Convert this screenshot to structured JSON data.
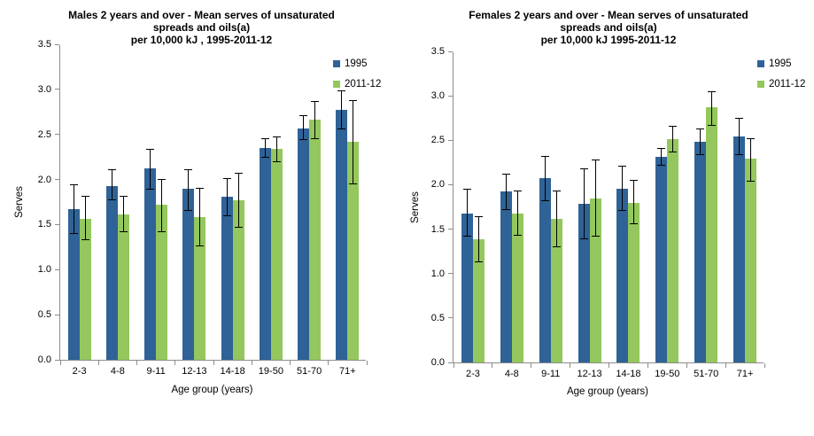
{
  "colors": {
    "series_1995": "#2F6296",
    "series_2011_12": "#94C75D",
    "error_bar": "#000000",
    "axis_line": "#8C8C8C",
    "text": "#000000",
    "background": "#FFFFFF"
  },
  "chart_data": [
    {
      "type": "bar",
      "title": "Males 2 years and over - Mean serves of unsaturated spreads and oils(a) per 10,000 kJ , 1995-2011-12",
      "title_lines": [
        "Males 2 years and over - Mean serves of unsaturated",
        "spreads and oils(a)",
        "per 10,000 kJ , 1995-2011-12"
      ],
      "xlabel": "Age group (years)",
      "ylabel": "Serves",
      "ylim": [
        0,
        3.5
      ],
      "ytick_step": 0.5,
      "grid": false,
      "legend_position": "top-right-inside",
      "categories": [
        "2-3",
        "4-8",
        "9-11",
        "12-13",
        "14-18",
        "19-50",
        "51-70",
        "71+"
      ],
      "series": [
        {
          "name": "1995",
          "color": "#2F6296",
          "values": [
            1.67,
            1.93,
            2.12,
            1.9,
            1.81,
            2.35,
            2.57,
            2.77
          ],
          "error_low": [
            1.4,
            1.77,
            1.89,
            1.66,
            1.6,
            2.25,
            2.44,
            2.56
          ],
          "error_high": [
            1.94,
            2.11,
            2.34,
            2.11,
            2.01,
            2.45,
            2.71,
            2.98
          ]
        },
        {
          "name": "2011-12",
          "color": "#94C75D",
          "values": [
            1.56,
            1.61,
            1.72,
            1.58,
            1.77,
            2.34,
            2.66,
            2.42
          ],
          "error_low": [
            1.33,
            1.42,
            1.42,
            1.26,
            1.47,
            2.2,
            2.45,
            1.95
          ],
          "error_high": [
            1.81,
            1.81,
            2.0,
            1.9,
            2.07,
            2.47,
            2.87,
            2.88
          ]
        }
      ]
    },
    {
      "type": "bar",
      "title": "Females 2 years and over - Mean serves of unsaturated spreads and oils(a) per 10,000 kJ 1995-2011-12",
      "title_lines": [
        "Females 2 years and over - Mean serves of unsaturated",
        "spreads and oils(a)",
        "per 10,000 kJ  1995-2011-12"
      ],
      "xlabel": "Age group (years)",
      "ylabel": "Serves",
      "ylim": [
        0,
        3.5
      ],
      "ytick_step": 0.5,
      "grid": false,
      "legend_position": "top-right-inside",
      "categories": [
        "2-3",
        "4-8",
        "9-11",
        "12-13",
        "14-18",
        "19-50",
        "51-70",
        "71+"
      ],
      "series": [
        {
          "name": "1995",
          "color": "#2F6296",
          "values": [
            1.68,
            1.92,
            2.07,
            1.79,
            1.95,
            2.31,
            2.48,
            2.54
          ],
          "error_low": [
            1.42,
            1.72,
            1.82,
            1.39,
            1.71,
            2.22,
            2.34,
            2.34
          ],
          "error_high": [
            1.95,
            2.12,
            2.32,
            2.18,
            2.21,
            2.41,
            2.63,
            2.75
          ]
        },
        {
          "name": "2011-12",
          "color": "#94C75D",
          "values": [
            1.39,
            1.68,
            1.62,
            1.84,
            1.8,
            2.51,
            2.87,
            2.29
          ],
          "error_low": [
            1.13,
            1.43,
            1.3,
            1.42,
            1.56,
            2.37,
            2.67,
            2.04
          ],
          "error_high": [
            1.64,
            1.93,
            1.93,
            2.28,
            2.05,
            2.66,
            3.05,
            2.52
          ]
        }
      ]
    }
  ]
}
